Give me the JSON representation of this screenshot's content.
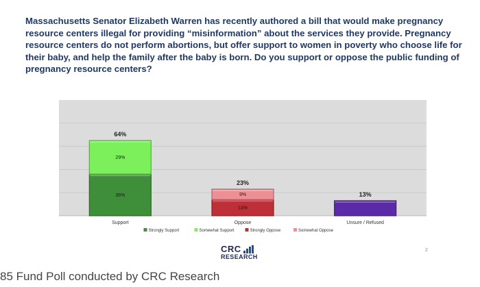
{
  "question": "Massachusetts Senator Elizabeth Warren has recently authored a bill that would make pregnancy resource centers illegal for providing “misinformation” about the services they provide. Pregnancy resource centers do not perform abortions, but offer support to women in poverty who choose life for their baby, and help the family after the baby is born. Do you support or oppose the public funding of pregnancy resource centers?",
  "chart_data": {
    "type": "bar",
    "stacked": true,
    "categories": [
      "Support",
      "Oppose",
      "Unsure / Refused"
    ],
    "series": [
      {
        "name": "Strongly Support",
        "values": [
          36,
          0,
          0
        ],
        "labels": [
          "36%",
          "",
          ""
        ],
        "color": "#3f8f3a"
      },
      {
        "name": "Somewhat Support",
        "values": [
          29,
          0,
          0
        ],
        "labels": [
          "29%",
          "",
          ""
        ],
        "color": "#7cf05a"
      },
      {
        "name": "Strongly Oppose",
        "values": [
          0,
          14,
          0
        ],
        "labels": [
          "",
          "14%",
          ""
        ],
        "color": "#bf2f37"
      },
      {
        "name": "Somewhat Oppose",
        "values": [
          0,
          9,
          0
        ],
        "labels": [
          "",
          "9%",
          ""
        ],
        "color": "#ee8f96"
      },
      {
        "name": "",
        "values": [
          0,
          0,
          13
        ],
        "labels": [
          "",
          "",
          ""
        ],
        "color": "#5b2aa6"
      }
    ],
    "totals": [
      "64%",
      "23%",
      "13%"
    ],
    "ylim": [
      0,
      100
    ],
    "grid": true,
    "legend_position": "bottom"
  },
  "branding": {
    "crc": "CRC",
    "research": "RESEARCH"
  },
  "page_number": "2",
  "caption": "85 Fund Poll conducted by CRC Research"
}
